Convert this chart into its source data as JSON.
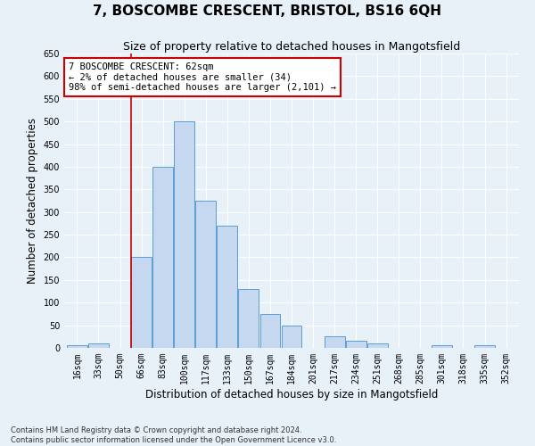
{
  "title": "7, BOSCOMBE CRESCENT, BRISTOL, BS16 6QH",
  "subtitle": "Size of property relative to detached houses in Mangotsfield",
  "xlabel": "Distribution of detached houses by size in Mangotsfield",
  "ylabel": "Number of detached properties",
  "footer_line1": "Contains HM Land Registry data © Crown copyright and database right 2024.",
  "footer_line2": "Contains public sector information licensed under the Open Government Licence v3.0.",
  "bar_labels": [
    "16sqm",
    "33sqm",
    "50sqm",
    "66sqm",
    "83sqm",
    "100sqm",
    "117sqm",
    "133sqm",
    "150sqm",
    "167sqm",
    "184sqm",
    "201sqm",
    "217sqm",
    "234sqm",
    "251sqm",
    "268sqm",
    "285sqm",
    "301sqm",
    "318sqm",
    "335sqm",
    "352sqm"
  ],
  "bar_values": [
    5,
    10,
    0,
    200,
    400,
    500,
    325,
    270,
    130,
    75,
    50,
    0,
    25,
    15,
    10,
    0,
    0,
    5,
    0,
    5,
    0
  ],
  "bar_color": "#c5d8f0",
  "bar_edge_color": "#5a9fd4",
  "vline_x_index": 2.5,
  "annotation_text": "7 BOSCOMBE CRESCENT: 62sqm\n← 2% of detached houses are smaller (34)\n98% of semi-detached houses are larger (2,101) →",
  "annotation_box_color": "#ffffff",
  "annotation_box_edge_color": "#cc0000",
  "vline_color": "#cc0000",
  "ylim": [
    0,
    650
  ],
  "yticks": [
    0,
    50,
    100,
    150,
    200,
    250,
    300,
    350,
    400,
    450,
    500,
    550,
    600,
    650
  ],
  "background_color": "#e8f0f8",
  "grid_color": "#ffffff",
  "title_fontsize": 11,
  "subtitle_fontsize": 9,
  "axis_label_fontsize": 8.5,
  "tick_fontsize": 7,
  "annotation_fontsize": 7.5,
  "footer_fontsize": 6
}
